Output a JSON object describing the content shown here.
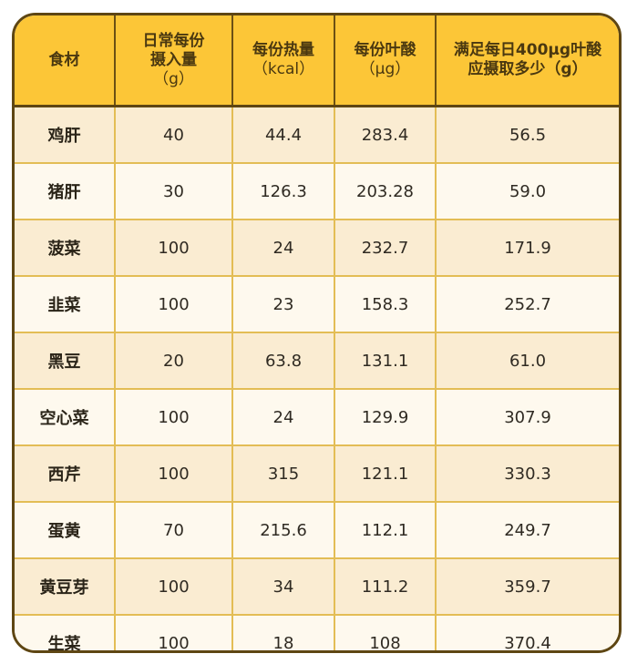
{
  "table": {
    "headers": [
      {
        "lines": [
          "食材"
        ]
      },
      {
        "lines": [
          "日常每份",
          "摄入量",
          "（g）"
        ]
      },
      {
        "lines": [
          "每份热量",
          "（kcal）"
        ]
      },
      {
        "lines": [
          "每份叶酸",
          "（μg）"
        ]
      },
      {
        "lines": [
          "满足每日400μg叶酸",
          "应摄取多少（g）"
        ]
      }
    ],
    "rows": [
      {
        "food": "鸡肝",
        "serving_g": "40",
        "kcal": "44.4",
        "folate_ug": "283.4",
        "needed_g": "56.5"
      },
      {
        "food": "猪肝",
        "serving_g": "30",
        "kcal": "126.3",
        "folate_ug": "203.28",
        "needed_g": "59.0"
      },
      {
        "food": "菠菜",
        "serving_g": "100",
        "kcal": "24",
        "folate_ug": "232.7",
        "needed_g": "171.9"
      },
      {
        "food": "韭菜",
        "serving_g": "100",
        "kcal": "23",
        "folate_ug": "158.3",
        "needed_g": "252.7"
      },
      {
        "food": "黑豆",
        "serving_g": "20",
        "kcal": "63.8",
        "folate_ug": "131.1",
        "needed_g": "61.0"
      },
      {
        "food": "空心菜",
        "serving_g": "100",
        "kcal": "24",
        "folate_ug": "129.9",
        "needed_g": "307.9"
      },
      {
        "food": "西芹",
        "serving_g": "100",
        "kcal": "315",
        "folate_ug": "121.1",
        "needed_g": "330.3"
      },
      {
        "food": "蛋黄",
        "serving_g": "70",
        "kcal": "215.6",
        "folate_ug": "112.1",
        "needed_g": "249.7"
      },
      {
        "food": "黄豆芽",
        "serving_g": "100",
        "kcal": "34",
        "folate_ug": "111.2",
        "needed_g": "359.7"
      },
      {
        "food": "生菜",
        "serving_g": "100",
        "kcal": "18",
        "folate_ug": "108",
        "needed_g": "370.4"
      }
    ]
  },
  "colors": {
    "header_bg": "#fcc637",
    "border_outer": "#5e4613",
    "grid_line": "#e3bd55",
    "row_alt_1": "#faecd2",
    "row_alt_2": "#fef9ee"
  }
}
